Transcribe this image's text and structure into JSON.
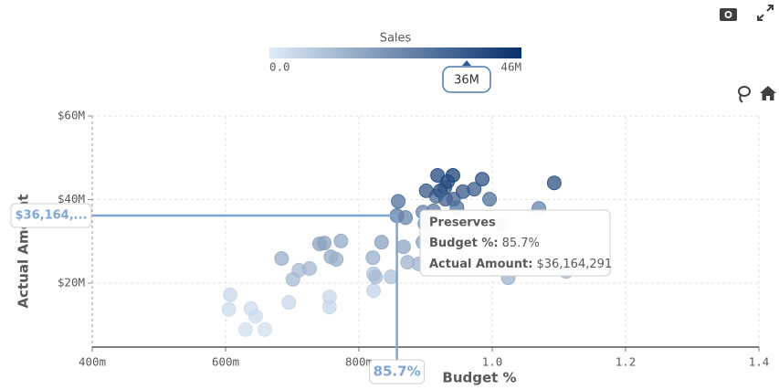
{
  "chart_data": {
    "type": "scatter",
    "x_label": "Budget %",
    "y_label": "Actual Amount",
    "xlim": [
      0.4,
      1.4
    ],
    "ylim": [
      4700000,
      60000000
    ],
    "xticks": [
      {
        "value": 0.4,
        "label": "400m"
      },
      {
        "value": 0.6,
        "label": "600m"
      },
      {
        "value": 0.8,
        "label": "800m"
      },
      {
        "value": 1.0,
        "label": "1.0"
      },
      {
        "value": 1.2,
        "label": "1.2"
      },
      {
        "value": 1.4,
        "label": "1.4"
      }
    ],
    "yticks": [
      {
        "value": 20000000,
        "label": "$20M"
      },
      {
        "value": 40000000,
        "label": "$40M"
      },
      {
        "value": 60000000,
        "label": "$60M"
      }
    ],
    "grid": true,
    "colorscale": {
      "title": "Sales",
      "min": 0,
      "max": 46000000,
      "min_label": "0.0",
      "max_label": "46M",
      "colors": [
        "#deebf7",
        "#08306b"
      ],
      "marker": {
        "value": 36000000,
        "label": "36M"
      }
    },
    "x": [
      0.607,
      0.605,
      0.63,
      0.638,
      0.645,
      0.659,
      0.695,
      0.756,
      0.756,
      0.822,
      0.822,
      0.684,
      0.701,
      0.71,
      0.726,
      0.741,
      0.748,
      0.758,
      0.766,
      0.773,
      0.821,
      0.834,
      0.825,
      0.848,
      0.873,
      0.89,
      0.896,
      0.867,
      0.899,
      0.859,
      0.857,
      0.87,
      0.896,
      0.905,
      0.912,
      0.916,
      0.929,
      0.941,
      0.918,
      0.922,
      0.93,
      0.942,
      0.956,
      0.947,
      0.973,
      0.985,
      0.996,
      1.014,
      1.024,
      1.07,
      1.093,
      1.111,
      0.901,
      0.933
    ],
    "y": [
      17200000,
      13700000,
      8900000,
      13900000,
      12100000,
      8900000,
      15400000,
      16700000,
      14300000,
      18200000,
      22200000,
      25900000,
      20900000,
      23100000,
      23500000,
      29400000,
      29600000,
      26300000,
      25700000,
      30100000,
      26100000,
      29800000,
      21500000,
      21500000,
      25000000,
      24600000,
      29800000,
      28700000,
      34200000,
      39600000,
      36164291,
      35700000,
      37000000,
      33500000,
      37300000,
      40800000,
      42900000,
      45800000,
      45800000,
      42100000,
      40100000,
      40100000,
      41900000,
      38100000,
      42500000,
      44900000,
      40100000,
      34000000,
      21300000,
      37900000,
      44000000,
      22800000,
      42100000,
      44300000
    ],
    "sales": [
      5000000,
      4000000,
      3000000,
      4000000,
      4000000,
      3000000,
      5000000,
      5000000,
      5000000,
      6000000,
      10000000,
      15000000,
      12000000,
      12000000,
      13000000,
      18000000,
      18000000,
      16000000,
      15000000,
      16000000,
      15000000,
      18000000,
      12000000,
      10000000,
      14000000,
      14000000,
      18000000,
      17000000,
      24000000,
      30000000,
      28000000,
      25000000,
      26000000,
      24000000,
      28000000,
      32000000,
      36000000,
      42000000,
      40000000,
      38000000,
      34000000,
      33000000,
      36000000,
      30000000,
      35000000,
      38000000,
      30000000,
      20000000,
      14000000,
      26000000,
      38000000,
      12000000,
      36000000,
      40000000
    ],
    "highlight": {
      "index": 30,
      "name": "Preserves",
      "x_field": "Budget %:",
      "x_value_label": "85.7%",
      "y_field": "Actual Amount:",
      "y_value_label": "$36,164,291",
      "y_axis_label": "$36,164,..."
    }
  }
}
